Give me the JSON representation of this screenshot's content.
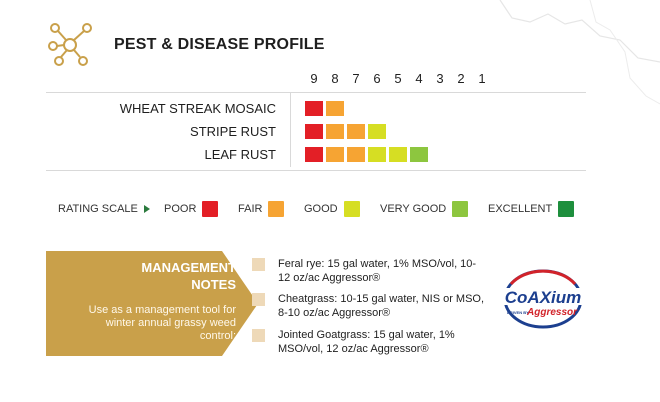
{
  "header": {
    "title": "PEST & DISEASE PROFILE",
    "icon": "network-nodes-icon"
  },
  "scale_numbers": [
    "9",
    "8",
    "7",
    "6",
    "5",
    "4",
    "3",
    "2",
    "1"
  ],
  "pests": [
    {
      "name": "WHEAT STREAK MOSAIC",
      "rating": 8
    },
    {
      "name": "STRIPE RUST",
      "rating": 6
    },
    {
      "name": "LEAF RUST",
      "rating": 4
    }
  ],
  "rating_colors": [
    "#e31f26",
    "#f6a433",
    "#f6a433",
    "#d6de23",
    "#d6de23",
    "#8dc63f",
    "#8dc63f",
    "#1e8f3d",
    "#1e8f3d"
  ],
  "legend": {
    "label": "RATING SCALE",
    "items": [
      {
        "label": "POOR",
        "color": "#e31f26"
      },
      {
        "label": "FAIR",
        "color": "#f6a433"
      },
      {
        "label": "GOOD",
        "color": "#d6de23"
      },
      {
        "label": "VERY GOOD",
        "color": "#8dc63f"
      },
      {
        "label": "EXCELLENT",
        "color": "#1e8f3d"
      }
    ]
  },
  "management": {
    "title_line1": "MANAGEMENT",
    "title_line2": "NOTES",
    "text": "Use as a management tool for winter annual grassy weed control:",
    "color": "#c9a04a",
    "notes": [
      "Feral rye: 15 gal water, 1% MSO/vol, 10-12 oz/ac Aggressor®",
      "Cheatgrass: 10-15 gal water, NIS or MSO, 8-10 oz/ac Aggressor®",
      "Jointed Goatgrass: 15 gal water, 1% MSO/vol, 12 oz/ac Aggressor®"
    ]
  },
  "logo": {
    "brand": "CoAXium",
    "tagline_prefix": "DRIVEN BY",
    "tagline_brand": "Aggressor"
  }
}
